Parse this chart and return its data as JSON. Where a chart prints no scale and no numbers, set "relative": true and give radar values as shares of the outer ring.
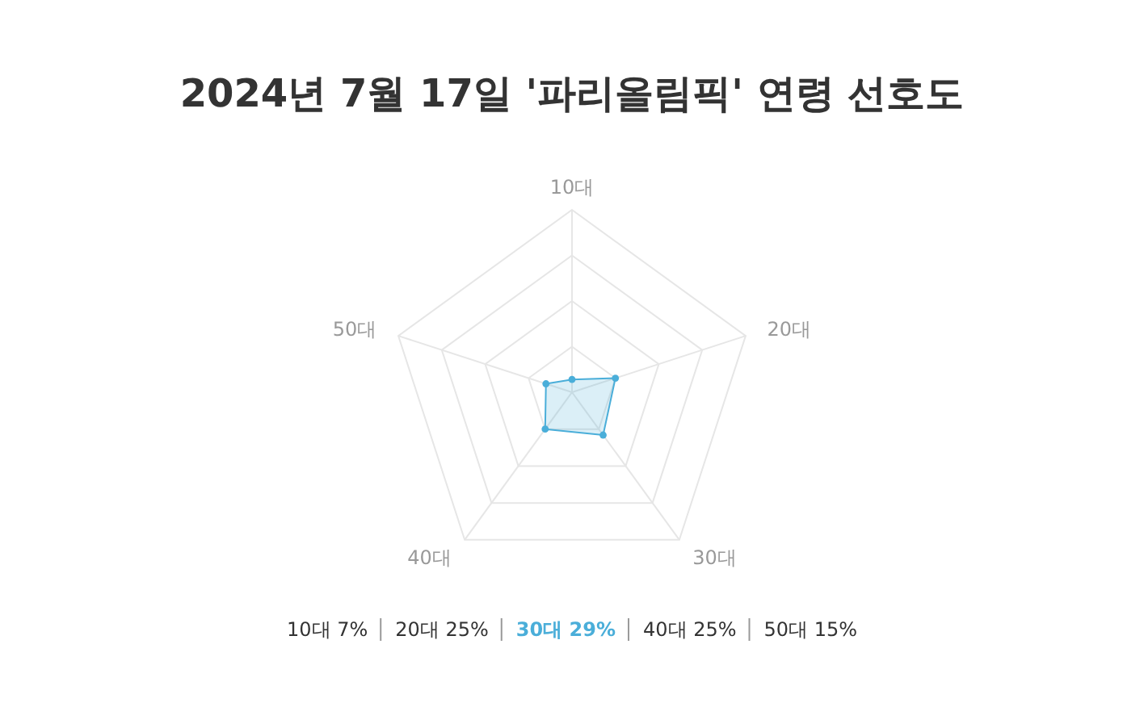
{
  "chart_data": {
    "type": "radar",
    "title": "2024년 7월 17일 '파리올림픽' 연령 선호도",
    "categories": [
      "10대",
      "20대",
      "30대",
      "40대",
      "50대"
    ],
    "series": [
      {
        "color": "#4aaed9",
        "values": [
          0.07,
          0.25,
          0.29,
          0.25,
          0.15
        ]
      }
    ],
    "relative": true,
    "annotations": [
      "10대 7%",
      "20대 25%",
      "30대 29%",
      "40대 25%",
      "50대 15%"
    ],
    "marker": "circle"
  }
}
